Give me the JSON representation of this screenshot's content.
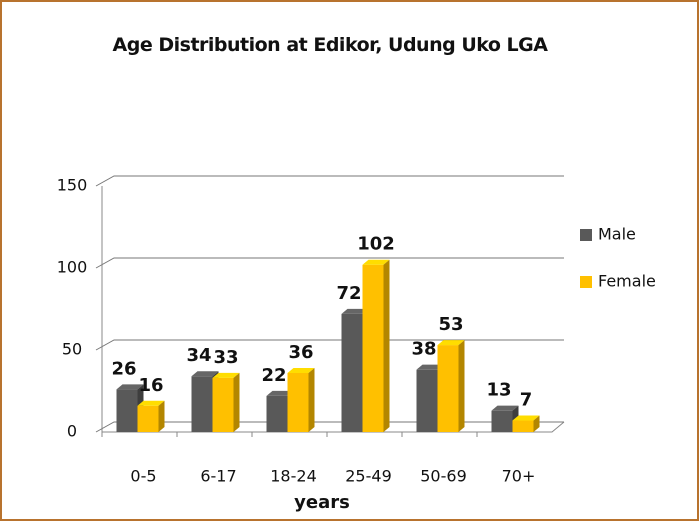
{
  "chart_data": {
    "type": "bar3d",
    "title": "Age Distribution at Edikor, Udung Uko LGA",
    "x_label": "years",
    "categories": [
      "0-5",
      "6-17",
      "18-24",
      "25-49",
      "50-69",
      "70+"
    ],
    "series": [
      {
        "name": "Male",
        "color": "#595959",
        "values": [
          26,
          34,
          22,
          72,
          38,
          13
        ]
      },
      {
        "name": "Female",
        "color": "#ffc000",
        "values": [
          16,
          33,
          36,
          102,
          53,
          7
        ]
      }
    ],
    "ylim": [
      0,
      150
    ],
    "yticks": [
      0,
      50,
      100,
      150
    ],
    "grid": true,
    "legend": "right"
  }
}
